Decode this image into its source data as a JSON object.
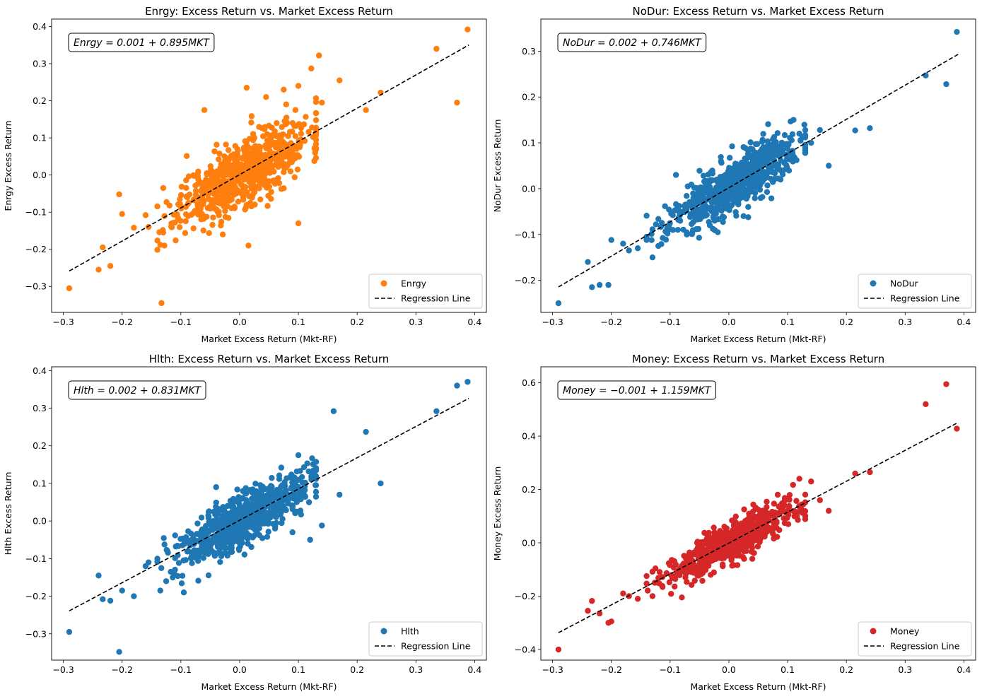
{
  "figure": {
    "colors": {
      "orange": "#ff7f0e",
      "blue": "#1f77b4",
      "red": "#d62728",
      "line": "#000000"
    }
  },
  "chart_data": [
    {
      "type": "scatter",
      "id": "enrgy",
      "title": "Enrgy: Excess Return vs. Market Excess Return",
      "xlabel": "Market Excess Return (Mkt-RF)",
      "ylabel": "Enrgy Excess Return",
      "xlim": [
        -0.32,
        0.42
      ],
      "ylim": [
        -0.37,
        0.42
      ],
      "xticks": [
        -0.3,
        -0.2,
        -0.1,
        0.0,
        0.1,
        0.2,
        0.3,
        0.4
      ],
      "xtick_labels": [
        "−0.3",
        "−0.2",
        "−0.1",
        "0.0",
        "0.1",
        "0.2",
        "0.3",
        "0.4"
      ],
      "yticks": [
        -0.3,
        -0.2,
        -0.1,
        0.0,
        0.1,
        0.2,
        0.3,
        0.4
      ],
      "ytick_labels": [
        "−0.3",
        "−0.2",
        "−0.1",
        "0.0",
        "0.1",
        "0.2",
        "0.3",
        "0.4"
      ],
      "equation_label": "Enrgy = 0.001 + 0.895MKT",
      "intercept": 0.001,
      "slope": 0.895,
      "color": "#ff7f0e",
      "series": [
        {
          "name": "Enrgy",
          "kind": "scatter"
        },
        {
          "name": "Regression Line",
          "kind": "dashed-line"
        }
      ],
      "outliers": [
        [
          -0.29,
          -0.305
        ],
        [
          -0.24,
          -0.255
        ],
        [
          -0.233,
          -0.195
        ],
        [
          -0.22,
          -0.245
        ],
        [
          -0.205,
          -0.052
        ],
        [
          -0.2,
          -0.105
        ],
        [
          -0.18,
          -0.142
        ],
        [
          -0.16,
          -0.108
        ],
        [
          -0.155,
          -0.14
        ],
        [
          -0.135,
          -0.188
        ],
        [
          -0.133,
          -0.345
        ],
        [
          -0.128,
          -0.19
        ],
        [
          -0.13,
          -0.155
        ],
        [
          -0.13,
          -0.035
        ],
        [
          -0.06,
          0.175
        ],
        [
          0.012,
          0.235
        ],
        [
          0.015,
          -0.19
        ],
        [
          0.045,
          0.21
        ],
        [
          0.075,
          0.23
        ],
        [
          0.1,
          0.24
        ],
        [
          0.095,
          0.175
        ],
        [
          0.1,
          -0.13
        ],
        [
          0.122,
          0.287
        ],
        [
          0.135,
          0.322
        ],
        [
          0.14,
          0.195
        ],
        [
          0.17,
          0.255
        ],
        [
          0.215,
          0.175
        ],
        [
          0.24,
          0.222
        ],
        [
          0.335,
          0.34
        ],
        [
          0.37,
          0.195
        ],
        [
          0.388,
          0.392
        ]
      ],
      "n_cluster": 700,
      "cluster_sd": 0.055,
      "resid_sd": 0.045,
      "seed": 11,
      "legend": "lower right"
    },
    {
      "type": "scatter",
      "id": "nodur",
      "title": "NoDur: Excess Return vs. Market Excess Return",
      "xlabel": "Market Excess Return (Mkt-RF)",
      "ylabel": "NoDur Excess Return",
      "xlim": [
        -0.32,
        0.42
      ],
      "ylim": [
        -0.27,
        0.37
      ],
      "xticks": [
        -0.3,
        -0.2,
        -0.1,
        0.0,
        0.1,
        0.2,
        0.3,
        0.4
      ],
      "xtick_labels": [
        "−0.3",
        "−0.2",
        "−0.1",
        "0.0",
        "0.1",
        "0.2",
        "0.3",
        "0.4"
      ],
      "yticks": [
        -0.2,
        -0.1,
        0.0,
        0.1,
        0.2,
        0.3
      ],
      "ytick_labels": [
        "−0.2",
        "−0.1",
        "0.0",
        "0.1",
        "0.2",
        "0.3"
      ],
      "equation_label": "NoDur = 0.002 + 0.746MKT",
      "intercept": 0.002,
      "slope": 0.746,
      "color": "#1f77b4",
      "series": [
        {
          "name": "NoDur",
          "kind": "scatter"
        },
        {
          "name": "Regression Line",
          "kind": "dashed-line"
        }
      ],
      "outliers": [
        [
          -0.29,
          -0.25
        ],
        [
          -0.24,
          -0.16
        ],
        [
          -0.233,
          -0.215
        ],
        [
          -0.22,
          -0.21
        ],
        [
          -0.205,
          -0.21
        ],
        [
          -0.2,
          -0.112
        ],
        [
          -0.18,
          -0.12
        ],
        [
          -0.17,
          -0.135
        ],
        [
          -0.155,
          -0.13
        ],
        [
          -0.14,
          -0.112
        ],
        [
          -0.13,
          -0.15
        ],
        [
          -0.12,
          -0.125
        ],
        [
          -0.105,
          -0.085
        ],
        [
          -0.09,
          0.03
        ],
        [
          -0.07,
          0.005
        ],
        [
          0.025,
          -0.06
        ],
        [
          0.11,
          0.15
        ],
        [
          0.12,
          0.12
        ],
        [
          0.14,
          0.1
        ],
        [
          0.155,
          0.128
        ],
        [
          0.17,
          0.05
        ],
        [
          0.215,
          0.127
        ],
        [
          0.24,
          0.132
        ],
        [
          0.335,
          0.247
        ],
        [
          0.37,
          0.228
        ],
        [
          0.388,
          0.342
        ]
      ],
      "n_cluster": 700,
      "cluster_sd": 0.055,
      "resid_sd": 0.028,
      "seed": 23,
      "legend": "lower right"
    },
    {
      "type": "scatter",
      "id": "hlth",
      "title": "Hlth: Excess Return vs. Market Excess Return",
      "xlabel": "Market Excess Return (Mkt-RF)",
      "ylabel": "Hlth Excess Return",
      "xlim": [
        -0.32,
        0.42
      ],
      "ylim": [
        -0.37,
        0.41
      ],
      "xticks": [
        -0.3,
        -0.2,
        -0.1,
        0.0,
        0.1,
        0.2,
        0.3,
        0.4
      ],
      "xtick_labels": [
        "−0.3",
        "−0.2",
        "−0.1",
        "0.0",
        "0.1",
        "0.2",
        "0.3",
        "0.4"
      ],
      "yticks": [
        -0.3,
        -0.2,
        -0.1,
        0.0,
        0.1,
        0.2,
        0.3,
        0.4
      ],
      "ytick_labels": [
        "−0.3",
        "−0.2",
        "−0.1",
        "0.0",
        "0.1",
        "0.2",
        "0.3",
        "0.4"
      ],
      "equation_label": "Hlth = 0.002 + 0.831MKT",
      "intercept": 0.002,
      "slope": 0.831,
      "color": "#1f77b4",
      "series": [
        {
          "name": "Hlth",
          "kind": "scatter"
        },
        {
          "name": "Regression Line",
          "kind": "dashed-line"
        }
      ],
      "outliers": [
        [
          -0.29,
          -0.295
        ],
        [
          -0.24,
          -0.145
        ],
        [
          -0.233,
          -0.208
        ],
        [
          -0.22,
          -0.212
        ],
        [
          -0.205,
          -0.348
        ],
        [
          -0.2,
          -0.185
        ],
        [
          -0.18,
          -0.2
        ],
        [
          -0.16,
          -0.12
        ],
        [
          -0.155,
          -0.11
        ],
        [
          -0.135,
          -0.185
        ],
        [
          -0.125,
          -0.16
        ],
        [
          -0.095,
          -0.19
        ],
        [
          -0.04,
          0.09
        ],
        [
          0.09,
          -0.03
        ],
        [
          0.1,
          0.175
        ],
        [
          0.12,
          -0.05
        ],
        [
          0.14,
          -0.012
        ],
        [
          0.16,
          0.292
        ],
        [
          0.17,
          0.07
        ],
        [
          0.215,
          0.237
        ],
        [
          0.24,
          0.1
        ],
        [
          0.335,
          0.292
        ],
        [
          0.37,
          0.36
        ],
        [
          0.388,
          0.37
        ]
      ],
      "n_cluster": 700,
      "cluster_sd": 0.055,
      "resid_sd": 0.035,
      "seed": 37,
      "legend": "lower right"
    },
    {
      "type": "scatter",
      "id": "money",
      "title": "Money: Excess Return vs. Market Excess Return",
      "xlabel": "Market Excess Return (Mkt-RF)",
      "ylabel": "Money Excess Return",
      "xlim": [
        -0.32,
        0.42
      ],
      "ylim": [
        -0.44,
        0.66
      ],
      "xticks": [
        -0.3,
        -0.2,
        -0.1,
        0.0,
        0.1,
        0.2,
        0.3,
        0.4
      ],
      "xtick_labels": [
        "−0.3",
        "−0.2",
        "−0.1",
        "0.0",
        "0.1",
        "0.2",
        "0.3",
        "0.4"
      ],
      "yticks": [
        -0.4,
        -0.2,
        0.0,
        0.2,
        0.4,
        0.6
      ],
      "ytick_labels": [
        "−0.4",
        "−0.2",
        "0.0",
        "0.2",
        "0.4",
        "0.6"
      ],
      "equation_label": "Money = −0.001 + 1.159MKT",
      "intercept": -0.001,
      "slope": 1.159,
      "color": "#d62728",
      "series": [
        {
          "name": "Money",
          "kind": "scatter"
        },
        {
          "name": "Regression Line",
          "kind": "dashed-line"
        }
      ],
      "outliers": [
        [
          -0.29,
          -0.4
        ],
        [
          -0.24,
          -0.255
        ],
        [
          -0.233,
          -0.218
        ],
        [
          -0.22,
          -0.265
        ],
        [
          -0.205,
          -0.3
        ],
        [
          -0.2,
          -0.295
        ],
        [
          -0.18,
          -0.19
        ],
        [
          -0.17,
          -0.2
        ],
        [
          -0.155,
          -0.21
        ],
        [
          -0.13,
          -0.2
        ],
        [
          -0.08,
          -0.205
        ],
        [
          0.1,
          0.12
        ],
        [
          0.12,
          0.24
        ],
        [
          0.14,
          0.23
        ],
        [
          0.155,
          0.16
        ],
        [
          0.17,
          0.12
        ],
        [
          0.215,
          0.26
        ],
        [
          0.24,
          0.265
        ],
        [
          0.335,
          0.52
        ],
        [
          0.37,
          0.595
        ],
        [
          0.388,
          0.428
        ]
      ],
      "n_cluster": 700,
      "cluster_sd": 0.055,
      "resid_sd": 0.035,
      "seed": 53,
      "legend": "lower right"
    }
  ]
}
